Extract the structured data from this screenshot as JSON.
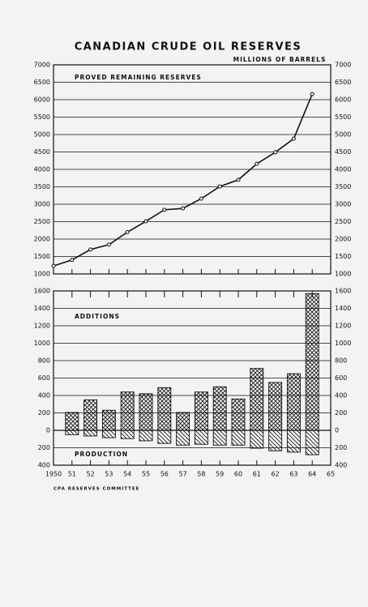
{
  "chart_data": [
    {
      "type": "line",
      "title": "CANADIAN CRUDE OIL RESERVES",
      "subtitle": "MILLIONS OF BARRELS",
      "label": "PROVED REMAINING RESERVES",
      "color": "#111111",
      "x": [
        1950,
        1951,
        1952,
        1953,
        1954,
        1955,
        1956,
        1957,
        1958,
        1959,
        1960,
        1961,
        1962,
        1963,
        1964
      ],
      "values": [
        1230,
        1400,
        1700,
        1840,
        2200,
        2510,
        2840,
        2880,
        3160,
        3510,
        3700,
        4160,
        4490,
        4880,
        6160
      ],
      "xlim": [
        1950,
        1965
      ],
      "ylim": [
        1000,
        7000
      ],
      "yticks": [
        1000,
        1500,
        2000,
        2500,
        3000,
        3500,
        4000,
        4500,
        5000,
        5500,
        6000,
        6500,
        7000
      ],
      "grid": true
    },
    {
      "type": "bar",
      "footer": "CPA RESERVES COMMITTEE",
      "x": [
        1951,
        1952,
        1953,
        1954,
        1955,
        1956,
        1957,
        1958,
        1959,
        1960,
        1961,
        1962,
        1963,
        1964
      ],
      "series": [
        {
          "name": "ADDITIONS",
          "color": "#111111",
          "values": [
            205,
            350,
            230,
            440,
            420,
            490,
            205,
            440,
            500,
            360,
            710,
            550,
            650,
            1570
          ]
        },
        {
          "name": "PRODUCTION",
          "color": "#111111",
          "values": [
            -50,
            -65,
            -85,
            -95,
            -120,
            -150,
            -170,
            -160,
            -170,
            -170,
            -205,
            -235,
            -250,
            -280
          ]
        }
      ],
      "xlim": [
        1950,
        1965
      ],
      "xticks": [
        {
          "value": 1950,
          "label": "1950"
        },
        {
          "value": 1951,
          "label": "51"
        },
        {
          "value": 1952,
          "label": "52"
        },
        {
          "value": 1953,
          "label": "53"
        },
        {
          "value": 1954,
          "label": "54"
        },
        {
          "value": 1955,
          "label": "55"
        },
        {
          "value": 1956,
          "label": "56"
        },
        {
          "value": 1957,
          "label": "57"
        },
        {
          "value": 1958,
          "label": "58"
        },
        {
          "value": 1959,
          "label": "59"
        },
        {
          "value": 1960,
          "label": "60"
        },
        {
          "value": 1961,
          "label": "61"
        },
        {
          "value": 1962,
          "label": "62"
        },
        {
          "value": 1963,
          "label": "63"
        },
        {
          "value": 1964,
          "label": "64"
        },
        {
          "value": 1965,
          "label": "65"
        }
      ],
      "ylim": [
        -400,
        1600
      ],
      "yticks": [
        {
          "value": -400,
          "label": "400"
        },
        {
          "value": -200,
          "label": "200"
        },
        0,
        200,
        400,
        600,
        800,
        1000,
        1200,
        1400,
        1600
      ],
      "grid": true
    }
  ]
}
